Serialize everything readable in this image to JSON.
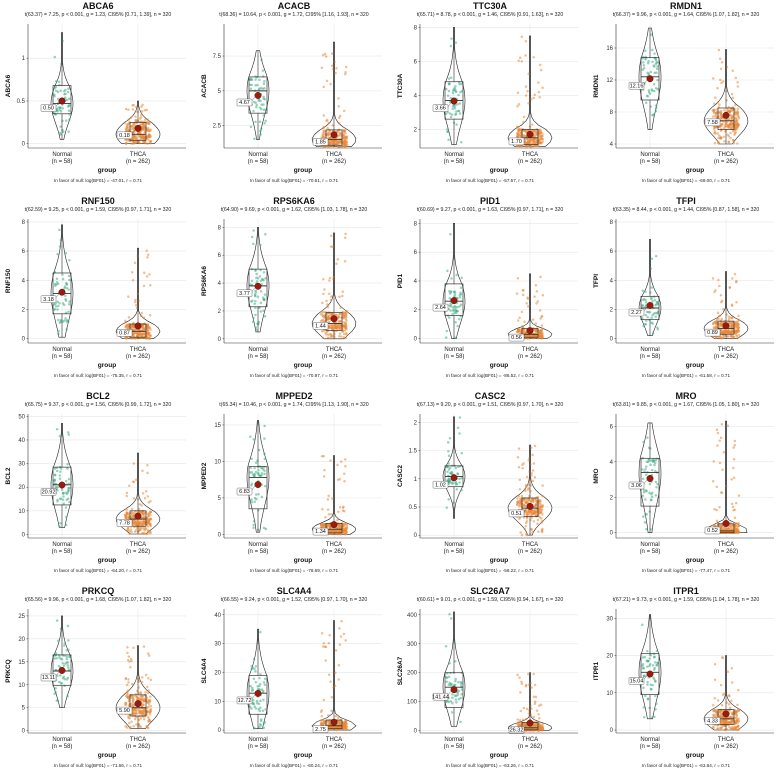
{
  "chart_data": [
    {
      "type": "violin",
      "title": "ABCA6",
      "ylabel": "ABCA6",
      "xlabel": "group",
      "stats": "t(63.37) = 7.25, p < 0.001, g = 1.23, CI95% [0.71, 1.39], n = 320",
      "footer": "In favor of null: log(BF01) = -47.01, r = 0.71",
      "categories": [
        "Normal",
        "THCA"
      ],
      "group_counts": [
        "(n = 58)",
        "(n = 262)"
      ],
      "yticks": [
        0.0,
        0.5,
        1.0
      ],
      "ylim": [
        -0.05,
        1.4
      ],
      "means": [
        0.5,
        0.18
      ],
      "mean_labels": [
        "0.50",
        "0.18"
      ],
      "box": [
        [
          0.35,
          0.47,
          0.68
        ],
        [
          0.04,
          0.11,
          0.25
        ]
      ],
      "whisker": [
        [
          0.05,
          1.3
        ],
        [
          0.0,
          0.5
        ]
      ]
    },
    {
      "type": "violin",
      "title": "ACACB",
      "ylabel": "ACACB",
      "xlabel": "group",
      "stats": "t(68.36) = 10.64, p < 0.001, g = 1.72, CI95% [1.16, 1.93], n = 320",
      "footer": "In favor of null: log(BF01) = -70.61, r = 0.71",
      "categories": [
        "Normal",
        "THCA"
      ],
      "group_counts": [
        "(n = 58)",
        "(n = 262)"
      ],
      "yticks": [
        2.5,
        5.0,
        7.5
      ],
      "ylim": [
        0.9,
        9.8
      ],
      "means": [
        4.67,
        1.85
      ],
      "mean_labels": [
        "4.67",
        "1.85"
      ],
      "box": [
        [
          3.4,
          5.0,
          6.0
        ],
        [
          1.1,
          1.5,
          2.2
        ]
      ],
      "whisker": [
        [
          1.5,
          7.9
        ],
        [
          1.0,
          8.5
        ]
      ]
    },
    {
      "type": "violin",
      "title": "TTC30A",
      "ylabel": "TTC30A",
      "xlabel": "group",
      "stats": "t(65.71) = 8.78, p < 0.001, g = 1.46, CI95% [0.91, 1.63], n = 320",
      "footer": "In favor of null: log(BF01) = -57.57, r = 0.71",
      "categories": [
        "Normal",
        "THCA"
      ],
      "group_counts": [
        "(n = 58)",
        "(n = 262)"
      ],
      "yticks": [
        2,
        4,
        6,
        8
      ],
      "ylim": [
        0.9,
        8.2
      ],
      "means": [
        3.66,
        1.7
      ],
      "mean_labels": [
        "3.66",
        "1.70"
      ],
      "box": [
        [
          2.6,
          3.7,
          4.8
        ],
        [
          1.1,
          1.5,
          2.0
        ]
      ],
      "whisker": [
        [
          1.1,
          8.0
        ],
        [
          1.0,
          7.5
        ]
      ]
    },
    {
      "type": "violin",
      "title": "RMDN1",
      "ylabel": "RMDN1",
      "xlabel": "group",
      "stats": "t(66.37) = 9.96, p < 0.001, g = 1.64, CI95% [1.07, 1.82], n = 320",
      "footer": "In favor of null: log(BF01) = -69.00, r = 0.71",
      "categories": [
        "Normal",
        "THCA"
      ],
      "group_counts": [
        "(n = 58)",
        "(n = 262)"
      ],
      "yticks": [
        4,
        8,
        12,
        16
      ],
      "ylim": [
        3.5,
        19.0
      ],
      "means": [
        12.16,
        7.58
      ],
      "mean_labels": [
        "12.16",
        "7.58"
      ],
      "box": [
        [
          9.5,
          12.4,
          14.8
        ],
        [
          5.8,
          6.9,
          8.5
        ]
      ],
      "whisker": [
        [
          5.8,
          18.5
        ],
        [
          4.0,
          15.8
        ]
      ]
    },
    {
      "type": "violin",
      "title": "RNF150",
      "ylabel": "RNF150",
      "xlabel": "group",
      "stats": "t(62.59) = 9.25, p < 0.001, g = 1.59, CI95% [0.97, 1.71], n = 320",
      "footer": "In favor of null: log(BF01) = -75.35, r = 0.71",
      "categories": [
        "Normal",
        "THCA"
      ],
      "group_counts": [
        "(n = 58)",
        "(n = 262)"
      ],
      "yticks": [
        0,
        2,
        4,
        6,
        8
      ],
      "ylim": [
        -0.3,
        8.2
      ],
      "means": [
        3.18,
        0.87
      ],
      "mean_labels": [
        "3.18",
        "0.87"
      ],
      "box": [
        [
          1.7,
          3.1,
          4.5
        ],
        [
          0.1,
          0.5,
          1.0
        ]
      ],
      "whisker": [
        [
          0.1,
          7.8
        ],
        [
          0.0,
          6.2
        ]
      ]
    },
    {
      "type": "violin",
      "title": "RPS6KA6",
      "ylabel": "RPS6KA6",
      "xlabel": "group",
      "stats": "t(64.90) = 9.69, p < 0.001, g = 1.62, CI95% [1.03, 1.78], n = 320",
      "footer": "In favor of null: log(BF01) = -70.97, r = 0.71",
      "categories": [
        "Normal",
        "THCA"
      ],
      "group_counts": [
        "(n = 58)",
        "(n = 262)"
      ],
      "yticks": [
        0,
        2,
        4,
        6,
        8
      ],
      "ylim": [
        -0.3,
        8.6
      ],
      "means": [
        3.77,
        1.44
      ],
      "mean_labels": [
        "3.77",
        "1.44"
      ],
      "box": [
        [
          2.3,
          3.8,
          5.0
        ],
        [
          0.6,
          1.1,
          1.9
        ]
      ],
      "whisker": [
        [
          0.5,
          8.0
        ],
        [
          0.0,
          7.6
        ]
      ]
    },
    {
      "type": "violin",
      "title": "PID1",
      "ylabel": "PID1",
      "xlabel": "group",
      "stats": "t(60.69) = 9.27, p < 0.001, g = 1.63, CI95% [0.97, 1.71], n = 320",
      "footer": "In favor of null: log(BF01) = -86.52, r = 0.71",
      "categories": [
        "Normal",
        "THCA"
      ],
      "group_counts": [
        "(n = 58)",
        "(n = 262)"
      ],
      "yticks": [
        0,
        2,
        4,
        6,
        8
      ],
      "ylim": [
        -0.3,
        8.3
      ],
      "means": [
        2.64,
        0.56
      ],
      "mean_labels": [
        "2.64",
        "0.56"
      ],
      "box": [
        [
          1.6,
          2.6,
          3.8
        ],
        [
          0.1,
          0.3,
          0.7
        ]
      ],
      "whisker": [
        [
          0.0,
          8.0
        ],
        [
          0.0,
          4.5
        ]
      ]
    },
    {
      "type": "violin",
      "title": "TFPI",
      "ylabel": "TFPI",
      "xlabel": "group",
      "stats": "t(63.35) = 8.44, p < 0.001, g = 1.44, CI95% [0.87, 1.58], n = 320",
      "footer": "In favor of null: log(BF01) = -61.58, r = 0.71",
      "categories": [
        "Normal",
        "THCA"
      ],
      "group_counts": [
        "(n = 58)",
        "(n = 262)"
      ],
      "yticks": [
        0,
        2,
        4,
        6,
        8
      ],
      "ylim": [
        -0.3,
        8.2
      ],
      "means": [
        2.27,
        0.89
      ],
      "mean_labels": [
        "2.27",
        "0.89"
      ],
      "box": [
        [
          1.3,
          2.1,
          2.9
        ],
        [
          0.3,
          0.7,
          1.2
        ]
      ],
      "whisker": [
        [
          0.2,
          6.8
        ],
        [
          0.0,
          4.6
        ]
      ]
    },
    {
      "type": "violin",
      "title": "BCL2",
      "ylabel": "BCL2",
      "xlabel": "group",
      "stats": "t(65.75) = 9.37, p < 0.001, g = 1.56, CI95% [0.99, 1.72], n = 320",
      "footer": "In favor of null: log(BF01) = -64.20, r = 0.71",
      "categories": [
        "Normal",
        "THCA"
      ],
      "group_counts": [
        "(n = 58)",
        "(n = 262)"
      ],
      "yticks": [
        0,
        10,
        20,
        30,
        40,
        50
      ],
      "ylim": [
        -1.5,
        51.0
      ],
      "means": [
        20.92,
        7.78
      ],
      "mean_labels": [
        "20.92",
        "7.78"
      ],
      "box": [
        [
          12.5,
          21.0,
          28.5
        ],
        [
          3.5,
          6.5,
          10.0
        ]
      ],
      "whisker": [
        [
          3.0,
          47.0
        ],
        [
          0.2,
          34.5
        ]
      ]
    },
    {
      "type": "violin",
      "title": "MPPED2",
      "ylabel": "MPPED2",
      "xlabel": "group",
      "stats": "t(65.34) = 10.46, p < 0.001, g = 1.74, CI95% [1.13, 1.90], n = 320",
      "footer": "In favor of null: log(BF01) = -78.69, r = 0.71",
      "categories": [
        "Normal",
        "THCA"
      ],
      "group_counts": [
        "(n = 58)",
        "(n = 262)"
      ],
      "yticks": [
        0,
        5,
        10,
        15
      ],
      "ylim": [
        -0.5,
        16.5
      ],
      "means": [
        6.83,
        1.34
      ],
      "mean_labels": [
        "6.83",
        "1.34"
      ],
      "box": [
        [
          3.5,
          7.8,
          9.3
        ],
        [
          0.2,
          0.7,
          1.5
        ]
      ],
      "whisker": [
        [
          0.3,
          15.6
        ],
        [
          0.0,
          10.8
        ]
      ]
    },
    {
      "type": "violin",
      "title": "CASC2",
      "ylabel": "CASC2",
      "xlabel": "group",
      "stats": "t(67.13) = 9.20, p < 0.001, g = 1.51, CI95% [0.97, 1.70], n = 320",
      "footer": "In favor of null: log(BF01) = -58.22, r = 0.71",
      "categories": [
        "Normal",
        "THCA"
      ],
      "group_counts": [
        "(n = 58)",
        "(n = 262)"
      ],
      "yticks": [
        0.0,
        0.5,
        1.0,
        1.5,
        2.0
      ],
      "ylim": [
        -0.05,
        2.15
      ],
      "means": [
        1.02,
        0.51
      ],
      "mean_labels": [
        "1.02",
        "0.51"
      ],
      "box": [
        [
          0.86,
          1.04,
          1.23
        ],
        [
          0.33,
          0.48,
          0.66
        ]
      ],
      "whisker": [
        [
          0.3,
          2.1
        ],
        [
          0.0,
          1.6
        ]
      ]
    },
    {
      "type": "violin",
      "title": "MRO",
      "ylabel": "MRO",
      "xlabel": "group",
      "stats": "t(63.81) = 9.85, p < 0.001, g = 1.67, CI95% [1.05, 1.80], n = 320",
      "footer": "In favor of null: log(BF01) = -77.47, r = 0.71",
      "categories": [
        "Normal",
        "THCA"
      ],
      "group_counts": [
        "(n = 58)",
        "(n = 262)"
      ],
      "yticks": [
        0,
        2,
        4,
        6
      ],
      "ylim": [
        -0.3,
        6.7
      ],
      "means": [
        3.06,
        0.52
      ],
      "mean_labels": [
        "3.06",
        "0.52"
      ],
      "box": [
        [
          1.5,
          3.4,
          4.2
        ],
        [
          0.0,
          0.1,
          0.5
        ]
      ],
      "whisker": [
        [
          0.0,
          6.2
        ],
        [
          0.0,
          6.3
        ]
      ]
    },
    {
      "type": "violin",
      "title": "PRKCQ",
      "ylabel": "PRKCQ",
      "xlabel": "group",
      "stats": "t(65.56) = 9.96, p < 0.001, g = 1.68, CI95% [1.07, 1.82], n = 320",
      "footer": "In favor of null: log(BF01) = -71.66, r = 0.71",
      "categories": [
        "Normal",
        "THCA"
      ],
      "group_counts": [
        "(n = 58)",
        "(n = 262)"
      ],
      "yticks": [
        0,
        5,
        10,
        15,
        20,
        25
      ],
      "ylim": [
        -0.5,
        26.5
      ],
      "means": [
        13.11,
        5.9
      ],
      "mean_labels": [
        "13.11",
        "5.90"
      ],
      "box": [
        [
          9.8,
          13.0,
          16.5
        ],
        [
          3.2,
          5.0,
          7.8
        ]
      ],
      "whisker": [
        [
          5.0,
          25.0
        ],
        [
          0.5,
          18.5
        ]
      ]
    },
    {
      "type": "violin",
      "title": "SLC4A4",
      "ylabel": "SLC4A4",
      "xlabel": "group",
      "stats": "t(66.55) = 9.24, p < 0.001, g = 1.52, CI95% [0.97, 1.70], n = 320",
      "footer": "In favor of null: log(BF01) = -60.24, r = 0.71",
      "categories": [
        "Normal",
        "THCA"
      ],
      "group_counts": [
        "(n = 58)",
        "(n = 262)"
      ],
      "yticks": [
        0,
        10,
        20,
        30,
        40
      ],
      "ylim": [
        -1.0,
        42.0
      ],
      "means": [
        12.72,
        2.75
      ],
      "mean_labels": [
        "12.72",
        "2.75"
      ],
      "box": [
        [
          5.5,
          12.8,
          19.0
        ],
        [
          0.5,
          1.5,
          3.5
        ]
      ],
      "whisker": [
        [
          0.5,
          35.0
        ],
        [
          0.0,
          38.0
        ]
      ]
    },
    {
      "type": "violin",
      "title": "SLC26A7",
      "ylabel": "SLC26A7",
      "xlabel": "group",
      "stats": "t(60.61) = 9.01, p < 0.001, g = 1.59, CI95% [0.94, 1.67], n = 320",
      "footer": "In favor of null: log(BF01) = -63.26, r = 0.71",
      "categories": [
        "Normal",
        "THCA"
      ],
      "group_counts": [
        "(n = 58)",
        "(n = 262)"
      ],
      "yticks": [
        0,
        100,
        200,
        300,
        400
      ],
      "ylim": [
        -8,
        420
      ],
      "means": [
        141.44,
        26.32
      ],
      "mean_labels": [
        "141.44",
        "26.32"
      ],
      "box": [
        [
          80,
          150,
          200
        ],
        [
          3,
          10,
          28
        ]
      ],
      "whisker": [
        [
          15,
          410
        ],
        [
          0,
          200
        ]
      ]
    },
    {
      "type": "violin",
      "title": "ITPR1",
      "ylabel": "ITPR1",
      "xlabel": "group",
      "stats": "t(67.21) = 9.73, p < 0.001, g = 1.59, CI95% [1.04, 1.78], n = 320",
      "footer": "In favor of null: log(BF01) = -63.84, r = 0.71",
      "categories": [
        "Normal",
        "THCA"
      ],
      "group_counts": [
        "(n = 58)",
        "(n = 262)"
      ],
      "yticks": [
        0,
        10,
        20,
        30
      ],
      "ylim": [
        -0.8,
        32.5
      ],
      "means": [
        15.04,
        4.33
      ],
      "mean_labels": [
        "15.04",
        "4.33"
      ],
      "box": [
        [
          9.5,
          15.5,
          20.5
        ],
        [
          1.5,
          3.0,
          5.5
        ]
      ],
      "whisker": [
        [
          3.0,
          31.0
        ],
        [
          0.0,
          20.0
        ]
      ]
    }
  ],
  "colors": {
    "normal": "#3fae85",
    "thca": "#e8883a",
    "mean": "#9b1c0e",
    "box": "#333333",
    "violin": "#222222",
    "grid": "#e6e6e6"
  }
}
